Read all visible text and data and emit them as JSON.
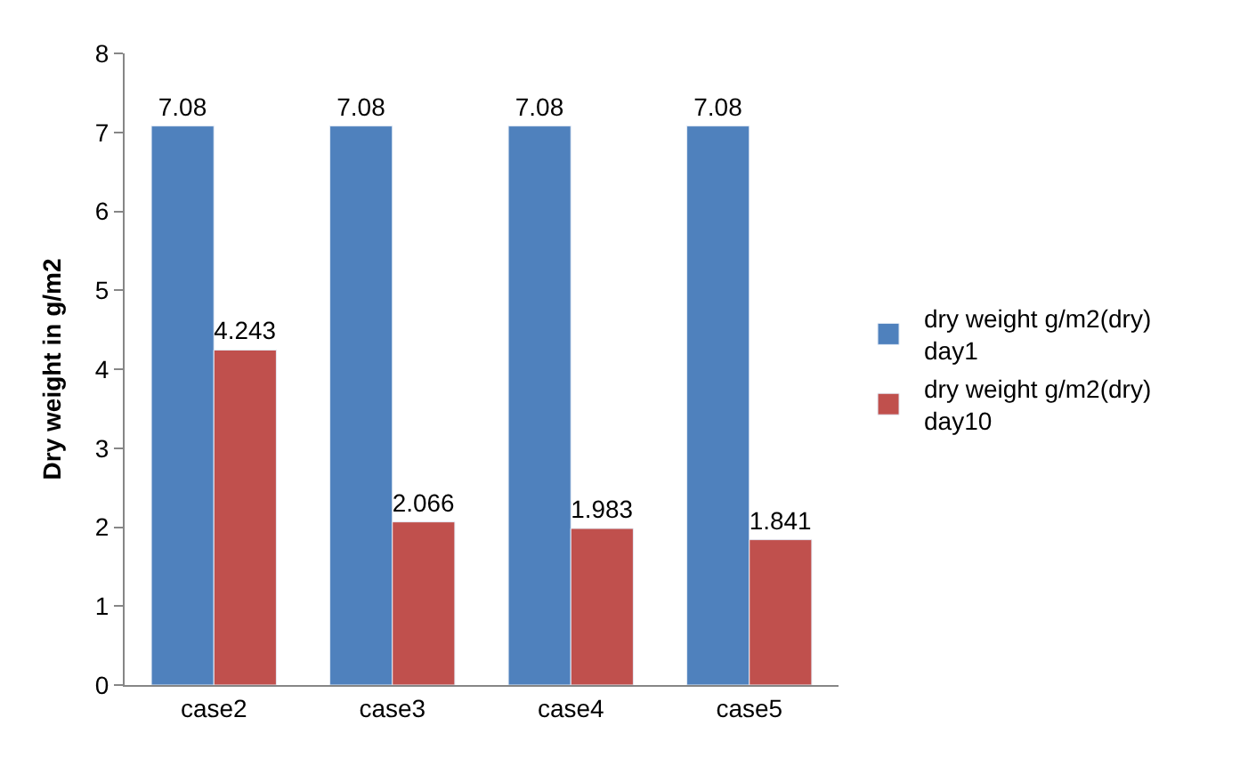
{
  "chart_data": {
    "type": "bar",
    "ylabel": "Dry weight in g/m2",
    "categories": [
      "case2",
      "case3",
      "case4",
      "case5"
    ],
    "series": [
      {
        "name": "dry weight g/m2(dry) day1",
        "color": "#4f81bd",
        "values": [
          7.08,
          7.08,
          7.08,
          7.08
        ]
      },
      {
        "name": "dry weight g/m2(dry) day10",
        "color": "#c0504d",
        "values": [
          4.243,
          2.066,
          1.983,
          1.841
        ]
      }
    ],
    "ylim": [
      0,
      8
    ],
    "yticks": [
      0,
      1,
      2,
      3,
      4,
      5,
      6,
      7,
      8
    ],
    "data_labels": true,
    "legend": "right"
  }
}
